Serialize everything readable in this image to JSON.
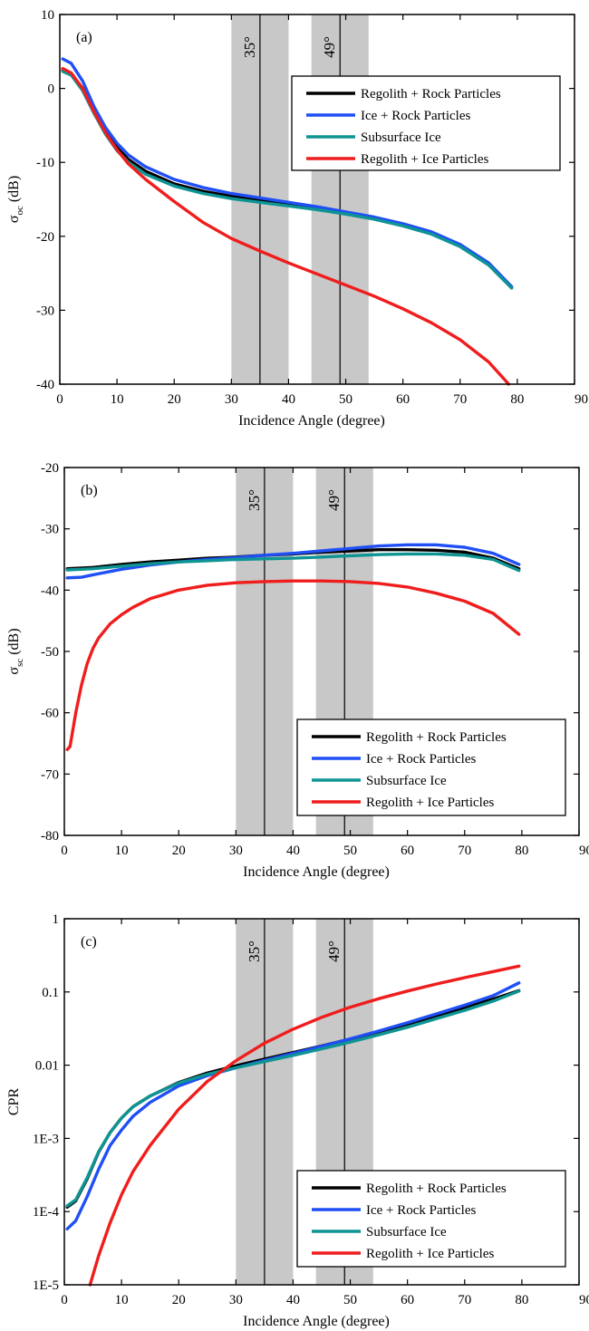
{
  "chart_data": [
    {
      "type": "line",
      "panel_label": "(a)",
      "xlabel": "Incidence Angle (degree)",
      "ylabel_main": "σ",
      "ylabel_sub": "oc",
      "ylabel_unit": " (dB)",
      "xlim": [
        0,
        90
      ],
      "ylim": [
        -40,
        10
      ],
      "yscale": "linear",
      "xticks": [
        0,
        10,
        20,
        30,
        40,
        50,
        60,
        70,
        80,
        90
      ],
      "xtick_labels": [
        "0",
        "10",
        "20",
        "30",
        "40",
        "50",
        "60",
        "70",
        "80",
        "90"
      ],
      "yticks": [
        -40,
        -30,
        -20,
        -10,
        0,
        10
      ],
      "ytick_labels": [
        "-40",
        "-30",
        "-20",
        "-10",
        "0",
        "10"
      ],
      "bands": [
        [
          30,
          40
        ],
        [
          44,
          54
        ]
      ],
      "vlines": [
        {
          "x": 35,
          "label": "35°"
        },
        {
          "x": 49,
          "label": "49°"
        }
      ],
      "legend": {
        "position": "top-right"
      },
      "series": [
        {
          "name": "Regolith + Rock Particles",
          "color": "#000000",
          "x": [
            0.5,
            2,
            4,
            6,
            8,
            10,
            12,
            15,
            20,
            25,
            30,
            35,
            40,
            45,
            50,
            55,
            60,
            65,
            70,
            75,
            79
          ],
          "y": [
            2.5,
            2.0,
            0.0,
            -3.0,
            -5.8,
            -8.0,
            -9.6,
            -11.2,
            -12.9,
            -13.9,
            -14.6,
            -15.1,
            -15.6,
            -16.2,
            -16.9,
            -17.6,
            -18.5,
            -19.6,
            -21.3,
            -23.8,
            -26.9
          ]
        },
        {
          "name": "Ice + Rock Particles",
          "color": "#1f4ff5",
          "x": [
            0.5,
            2,
            4,
            6,
            8,
            10,
            12,
            15,
            20,
            25,
            30,
            35,
            40,
            45,
            50,
            55,
            60,
            65,
            70,
            75,
            79
          ],
          "y": [
            4.0,
            3.4,
            1.0,
            -2.5,
            -5.3,
            -7.4,
            -9.0,
            -10.6,
            -12.3,
            -13.4,
            -14.2,
            -14.8,
            -15.4,
            -16.0,
            -16.7,
            -17.4,
            -18.3,
            -19.4,
            -21.1,
            -23.6,
            -26.8
          ]
        },
        {
          "name": "Subsurface Ice",
          "color": "#0f9494",
          "x": [
            0.5,
            2,
            4,
            6,
            8,
            10,
            12,
            15,
            20,
            25,
            30,
            35,
            40,
            45,
            50,
            55,
            60,
            65,
            70,
            75,
            79
          ],
          "y": [
            2.3,
            1.8,
            -0.3,
            -3.4,
            -6.2,
            -8.4,
            -10.0,
            -11.6,
            -13.2,
            -14.2,
            -14.9,
            -15.4,
            -15.9,
            -16.4,
            -17.0,
            -17.7,
            -18.6,
            -19.7,
            -21.4,
            -23.9,
            -27.0
          ]
        },
        {
          "name": "Regolith + Ice Particles",
          "color": "#f01d1d",
          "x": [
            0.5,
            2,
            4,
            6,
            8,
            10,
            12,
            15,
            20,
            25,
            30,
            35,
            40,
            45,
            50,
            55,
            60,
            65,
            70,
            75,
            78.5
          ],
          "y": [
            2.7,
            2.1,
            0.0,
            -3.2,
            -6.0,
            -8.3,
            -10.2,
            -12.3,
            -15.3,
            -18.1,
            -20.3,
            -22.0,
            -23.6,
            -25.1,
            -26.6,
            -28.1,
            -29.8,
            -31.7,
            -34.0,
            -37.0,
            -40.0
          ]
        }
      ]
    },
    {
      "type": "line",
      "panel_label": "(b)",
      "xlabel": "Incidence Angle (degree)",
      "ylabel_main": "σ",
      "ylabel_sub": "sc",
      "ylabel_unit": " (dB)",
      "xlim": [
        0,
        90
      ],
      "ylim": [
        -80,
        -20
      ],
      "yscale": "linear",
      "xticks": [
        0,
        10,
        20,
        30,
        40,
        50,
        60,
        70,
        80,
        90
      ],
      "xtick_labels": [
        "0",
        "10",
        "20",
        "30",
        "40",
        "50",
        "60",
        "70",
        "80",
        "90"
      ],
      "yticks": [
        -80,
        -70,
        -60,
        -50,
        -40,
        -30,
        -20
      ],
      "ytick_labels": [
        "-80",
        "-70",
        "-60",
        "-50",
        "-40",
        "-30",
        "-20"
      ],
      "bands": [
        [
          30,
          40
        ],
        [
          44,
          54
        ]
      ],
      "vlines": [
        {
          "x": 35,
          "label": "35°"
        },
        {
          "x": 49,
          "label": "49°"
        }
      ],
      "legend": {
        "position": "bottom-right"
      },
      "series": [
        {
          "name": "Regolith + Rock Particles",
          "color": "#000000",
          "x": [
            0.5,
            3,
            5,
            10,
            15,
            20,
            25,
            30,
            35,
            40,
            45,
            50,
            55,
            60,
            65,
            70,
            75,
            79.5
          ],
          "y": [
            -36.5,
            -36.4,
            -36.3,
            -35.8,
            -35.4,
            -35.1,
            -34.8,
            -34.6,
            -34.3,
            -34.1,
            -33.8,
            -33.6,
            -33.4,
            -33.4,
            -33.5,
            -33.8,
            -34.8,
            -36.5
          ]
        },
        {
          "name": "Ice + Rock Particles",
          "color": "#1f4ff5",
          "x": [
            0.5,
            3,
            5,
            10,
            15,
            20,
            25,
            30,
            35,
            40,
            45,
            50,
            55,
            60,
            65,
            70,
            75,
            79.5
          ],
          "y": [
            -38.0,
            -37.9,
            -37.5,
            -36.6,
            -35.9,
            -35.4,
            -35.0,
            -34.7,
            -34.3,
            -34.0,
            -33.6,
            -33.2,
            -32.8,
            -32.6,
            -32.6,
            -33.0,
            -34.0,
            -35.8
          ]
        },
        {
          "name": "Subsurface Ice",
          "color": "#0f9494",
          "x": [
            0.5,
            3,
            5,
            10,
            15,
            20,
            25,
            30,
            35,
            40,
            45,
            50,
            55,
            60,
            65,
            70,
            75,
            79.5
          ],
          "y": [
            -36.7,
            -36.6,
            -36.5,
            -36.1,
            -35.7,
            -35.4,
            -35.2,
            -35.0,
            -34.9,
            -34.8,
            -34.6,
            -34.4,
            -34.2,
            -34.1,
            -34.1,
            -34.3,
            -35.0,
            -36.8
          ]
        },
        {
          "name": "Regolith + Ice Particles",
          "color": "#f01d1d",
          "x": [
            0.5,
            1,
            2,
            3,
            4,
            5,
            6,
            8,
            10,
            12,
            15,
            20,
            25,
            30,
            35,
            40,
            45,
            50,
            55,
            60,
            65,
            70,
            75,
            79.5
          ],
          "y": [
            -66.0,
            -65.5,
            -60.0,
            -55.5,
            -52.0,
            -49.5,
            -47.8,
            -45.5,
            -44.0,
            -42.8,
            -41.4,
            -40.0,
            -39.2,
            -38.8,
            -38.6,
            -38.5,
            -38.5,
            -38.6,
            -38.9,
            -39.5,
            -40.5,
            -41.8,
            -43.8,
            -47.2
          ]
        }
      ]
    },
    {
      "type": "line",
      "panel_label": "(c)",
      "xlabel": "Incidence Angle (degree)",
      "ylabel_main": "CPR",
      "ylabel_sub": "",
      "ylabel_unit": "",
      "xlim": [
        0,
        90
      ],
      "ylim": [
        1e-05,
        1
      ],
      "yscale": "log",
      "xticks": [
        0,
        10,
        20,
        30,
        40,
        50,
        60,
        70,
        80,
        90
      ],
      "xtick_labels": [
        "0",
        "10",
        "20",
        "30",
        "40",
        "50",
        "60",
        "70",
        "80",
        "90"
      ],
      "yticks": [
        1e-05,
        0.0001,
        0.001,
        0.01,
        0.1,
        1
      ],
      "ytick_labels": [
        "1E-5",
        "1E-4",
        "1E-3",
        "0.01",
        "0.1",
        "1"
      ],
      "bands": [
        [
          30,
          40
        ],
        [
          44,
          54
        ]
      ],
      "vlines": [
        {
          "x": 35,
          "label": "35°"
        },
        {
          "x": 49,
          "label": "49°"
        }
      ],
      "legend": {
        "position": "bottom-right"
      },
      "series": [
        {
          "name": "Regolith + Rock Particles",
          "color": "#000000",
          "x": [
            0.5,
            2,
            4,
            6,
            8,
            10,
            12,
            15,
            20,
            25,
            30,
            35,
            40,
            45,
            50,
            55,
            60,
            65,
            70,
            75,
            79.5
          ],
          "y": [
            0.000115,
            0.00014,
            0.00028,
            0.00065,
            0.0012,
            0.0019,
            0.0027,
            0.0038,
            0.0058,
            0.0078,
            0.0098,
            0.0121,
            0.0149,
            0.0183,
            0.0228,
            0.0287,
            0.0365,
            0.047,
            0.061,
            0.08,
            0.104
          ]
        },
        {
          "name": "Ice + Rock Particles",
          "color": "#1f4ff5",
          "x": [
            0.5,
            2,
            4,
            6,
            8,
            10,
            12,
            15,
            20,
            25,
            30,
            35,
            40,
            45,
            50,
            55,
            60,
            65,
            70,
            75,
            79.5
          ],
          "y": [
            5.8e-05,
            7.5e-05,
            0.00016,
            0.00038,
            0.0008,
            0.0013,
            0.002,
            0.0031,
            0.0052,
            0.0072,
            0.0092,
            0.0116,
            0.0145,
            0.0181,
            0.0229,
            0.0293,
            0.038,
            0.05,
            0.066,
            0.089,
            0.133
          ]
        },
        {
          "name": "Subsurface Ice",
          "color": "#0f9494",
          "x": [
            0.5,
            2,
            4,
            6,
            8,
            10,
            12,
            15,
            20,
            25,
            30,
            35,
            40,
            45,
            50,
            55,
            60,
            65,
            70,
            75,
            79.5
          ],
          "y": [
            0.00012,
            0.000145,
            0.00029,
            0.00066,
            0.0012,
            0.0019,
            0.0027,
            0.0038,
            0.0057,
            0.0075,
            0.0092,
            0.0112,
            0.0136,
            0.0167,
            0.0207,
            0.026,
            0.033,
            0.043,
            0.056,
            0.075,
            0.103
          ]
        },
        {
          "name": "Regolith + Ice Particles",
          "color": "#f01d1d",
          "x": [
            4.5,
            6,
            8,
            10,
            12,
            15,
            20,
            25,
            30,
            35,
            40,
            45,
            50,
            55,
            60,
            65,
            70,
            75,
            79.5
          ],
          "y": [
            1e-05,
            2.5e-05,
            7e-05,
            0.00017,
            0.00035,
            0.0008,
            0.0025,
            0.006,
            0.0115,
            0.02,
            0.031,
            0.045,
            0.062,
            0.081,
            0.103,
            0.128,
            0.157,
            0.19,
            0.225
          ]
        }
      ]
    }
  ]
}
